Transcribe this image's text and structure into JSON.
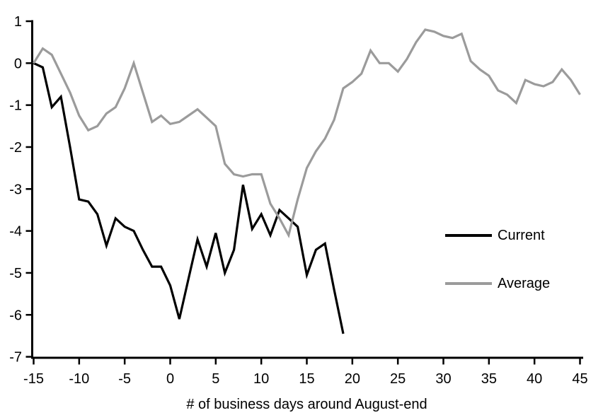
{
  "chart_data": {
    "type": "line",
    "title": "",
    "xlabel": "# of business days around August-end",
    "ylabel": "",
    "xlim": [
      -15,
      45
    ],
    "ylim": [
      -7,
      1
    ],
    "x_ticks": [
      -15,
      -10,
      -5,
      0,
      5,
      10,
      15,
      20,
      25,
      30,
      35,
      40,
      45
    ],
    "y_ticks": [
      1,
      0,
      -1,
      -2,
      -3,
      -4,
      -5,
      -6,
      -7
    ],
    "grid": false,
    "legend_position": "center-right",
    "axis_color": "#000000",
    "series": [
      {
        "name": "Current",
        "color": "#000000",
        "x": [
          -15,
          -14,
          -13,
          -12,
          -11,
          -10,
          -9,
          -8,
          -7,
          -6,
          -5,
          -4,
          -3,
          -2,
          -1,
          0,
          1,
          2,
          3,
          4,
          5,
          6,
          7,
          8,
          9,
          10,
          11,
          12,
          13,
          14,
          15,
          16,
          17,
          18,
          19
        ],
        "values": [
          0,
          -0.1,
          -1.05,
          -0.8,
          -2.0,
          -3.25,
          -3.3,
          -3.6,
          -4.35,
          -3.7,
          -3.9,
          -4.0,
          -4.45,
          -4.85,
          -4.85,
          -5.3,
          -6.1,
          -5.15,
          -4.2,
          -4.85,
          -4.05,
          -5.0,
          -4.45,
          -2.9,
          -3.95,
          -3.6,
          -4.1,
          -3.5,
          -3.7,
          -3.9,
          -5.05,
          -4.45,
          -4.3,
          -5.4,
          -6.45
        ]
      },
      {
        "name": "Average",
        "color": "#9b9b9b",
        "x": [
          -15,
          -14,
          -13,
          -12,
          -11,
          -10,
          -9,
          -8,
          -7,
          -6,
          -5,
          -4,
          -3,
          -2,
          -1,
          0,
          1,
          2,
          3,
          4,
          5,
          6,
          7,
          8,
          9,
          10,
          11,
          12,
          13,
          14,
          15,
          16,
          17,
          18,
          19,
          20,
          21,
          22,
          23,
          24,
          25,
          26,
          27,
          28,
          29,
          30,
          31,
          32,
          33,
          34,
          35,
          36,
          37,
          38,
          39,
          40,
          41,
          42,
          43,
          44,
          45
        ],
        "values": [
          0,
          0.35,
          0.2,
          -0.25,
          -0.7,
          -1.25,
          -1.6,
          -1.5,
          -1.2,
          -1.05,
          -0.6,
          0.0,
          -0.7,
          -1.4,
          -1.25,
          -1.45,
          -1.4,
          -1.25,
          -1.1,
          -1.3,
          -1.5,
          -2.4,
          -2.65,
          -2.7,
          -2.65,
          -2.65,
          -3.35,
          -3.7,
          -4.1,
          -3.25,
          -2.5,
          -2.1,
          -1.8,
          -1.35,
          -0.6,
          -0.45,
          -0.25,
          0.3,
          0.0,
          0.0,
          -0.2,
          0.1,
          0.5,
          0.8,
          0.75,
          0.65,
          0.6,
          0.7,
          0.05,
          -0.15,
          -0.3,
          -0.65,
          -0.75,
          -0.95,
          -0.4,
          -0.5,
          -0.55,
          -0.45,
          -0.15,
          -0.4,
          -0.75
        ]
      }
    ]
  }
}
